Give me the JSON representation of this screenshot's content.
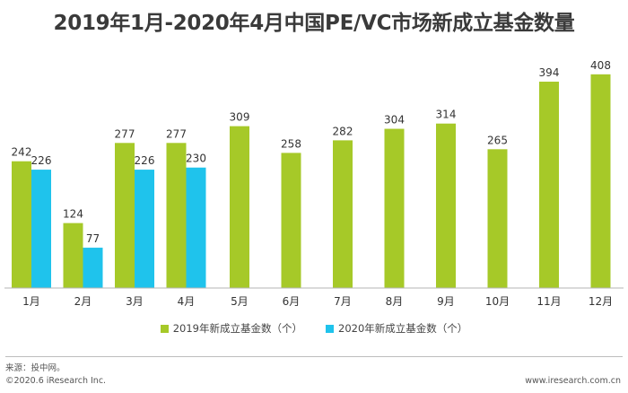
{
  "title": "2019年1月-2020年4月中国PE/VC市场新成立基金数量",
  "chart_data": {
    "type": "bar",
    "categories": [
      "1月",
      "2月",
      "3月",
      "4月",
      "5月",
      "6月",
      "7月",
      "8月",
      "9月",
      "10月",
      "11月",
      "12月"
    ],
    "series": [
      {
        "name": "2019年新成立基金数（个）",
        "color": "#a6c928",
        "values": [
          242,
          124,
          277,
          277,
          309,
          258,
          282,
          304,
          314,
          265,
          394,
          408
        ]
      },
      {
        "name": "2020年新成立基金数（个）",
        "color": "#1fc3ec",
        "values": [
          226,
          77,
          226,
          230,
          null,
          null,
          null,
          null,
          null,
          null,
          null,
          null
        ]
      }
    ],
    "ylim": [
      0,
      430
    ],
    "grid": false,
    "legend_position": "bottom"
  },
  "source": "来源：投中网。",
  "footer": {
    "copyright": "©2020.6 iResearch Inc.",
    "website": "www.iresearch.com.cn"
  }
}
